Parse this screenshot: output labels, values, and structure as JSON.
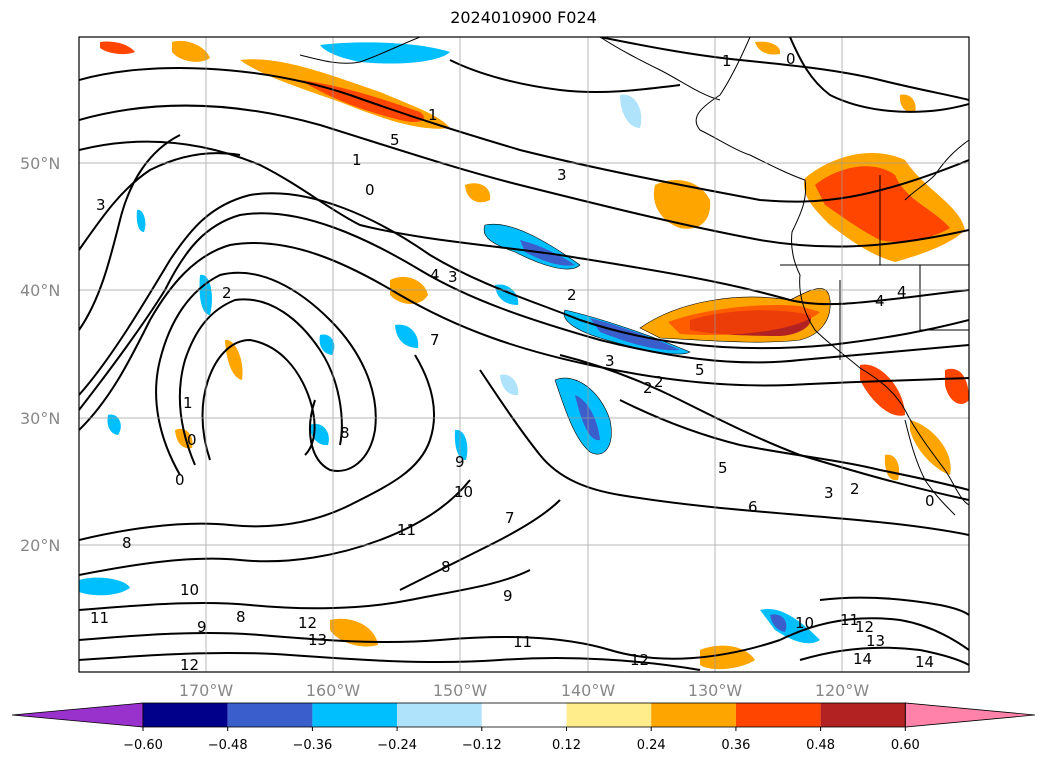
{
  "title": "2024010900 F024",
  "map": {
    "lat_labels": [
      "50°N",
      "40°N",
      "30°N",
      "20°N"
    ],
    "lat_values": [
      50,
      40,
      30,
      20
    ],
    "lon_labels": [
      "170°W",
      "160°W",
      "150°W",
      "140°W",
      "130°W",
      "120°W"
    ],
    "lon_values": [
      -170,
      -160,
      -150,
      -140,
      -130,
      -120
    ],
    "lon_range": [
      -180,
      -110
    ],
    "lat_range": [
      10,
      60
    ],
    "gridlines": true,
    "contour_labels": [
      "1",
      "0",
      "3",
      "2",
      "5",
      "3",
      "4",
      "3",
      "2",
      "7",
      "8",
      "1",
      "0",
      "8",
      "9",
      "10",
      "11",
      "7",
      "9",
      "8",
      "10",
      "11",
      "12",
      "13",
      "11",
      "12",
      "8",
      "9",
      "5",
      "6",
      "3",
      "2",
      "0",
      "2",
      "1",
      "10",
      "11",
      "12",
      "13",
      "14",
      "14",
      "4",
      "4",
      "3",
      "2",
      "5",
      "0",
      "0",
      "1",
      "12"
    ]
  },
  "colorbar": {
    "ticks": [
      "−0.60",
      "−0.48",
      "−0.36",
      "−0.24",
      "−0.12",
      "0.12",
      "0.24",
      "0.36",
      "0.48",
      "0.60"
    ],
    "colors": [
      "#9932cc",
      "#00008b",
      "#3a5fcd",
      "#00bfff",
      "#aee3fb",
      "#ffffff",
      "#ffec8b",
      "#ffa500",
      "#ff4500",
      "#b22222",
      "#ff82ab"
    ]
  }
}
